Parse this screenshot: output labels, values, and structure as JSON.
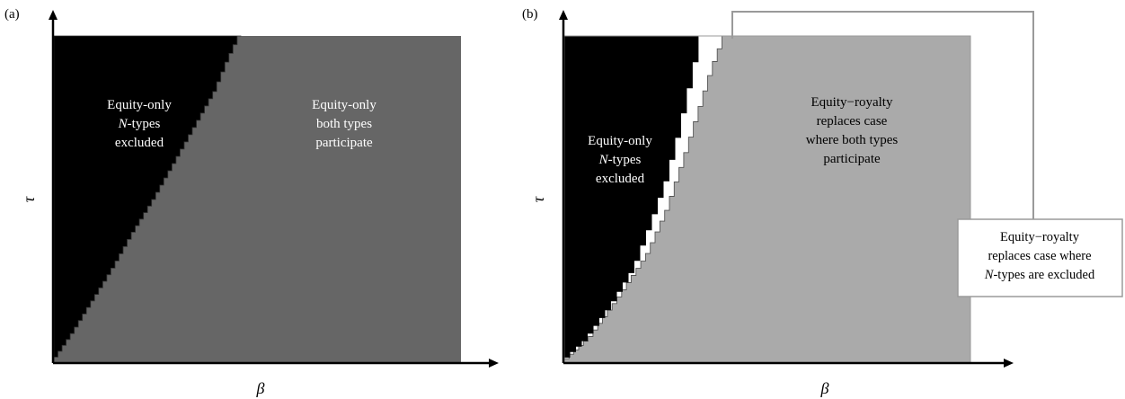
{
  "chart_data": [
    {
      "panel_label": "(a)",
      "type": "area",
      "xlabel": "β",
      "ylabel": "τ",
      "regions": [
        {
          "name": "equity-only-n-excluded",
          "color": "#000000",
          "lines": [
            {
              "text": "Equity-only"
            },
            {
              "text": "N",
              "italic": true,
              "suffix": "-types"
            },
            {
              "text": "excluded"
            }
          ]
        },
        {
          "name": "equity-only-both-participate",
          "color": "#666666",
          "lines": [
            {
              "text": "Equity-only"
            },
            {
              "text": "both types"
            },
            {
              "text": "participate"
            }
          ]
        }
      ],
      "boundary_curve": [
        [
          0.0,
          0.0
        ],
        [
          0.05,
          0.09
        ],
        [
          0.1,
          0.19
        ],
        [
          0.15,
          0.29
        ],
        [
          0.2,
          0.4
        ],
        [
          0.25,
          0.5
        ],
        [
          0.3,
          0.61
        ],
        [
          0.35,
          0.72
        ],
        [
          0.4,
          0.83
        ],
        [
          0.43,
          0.92
        ],
        [
          0.46,
          1.0
        ]
      ]
    },
    {
      "panel_label": "(b)",
      "type": "area",
      "xlabel": "β",
      "ylabel": "τ",
      "regions": [
        {
          "name": "equity-only-n-excluded",
          "color": "#000000",
          "lines": [
            {
              "text": "Equity-only"
            },
            {
              "text": "N",
              "italic": true,
              "suffix": "-types"
            },
            {
              "text": "excluded"
            }
          ]
        },
        {
          "name": "equity-royalty-replaces-both-participate",
          "color": "#aaaaaa",
          "lines": [
            {
              "text": "Equity−royalty"
            },
            {
              "text": "replaces case"
            },
            {
              "text": "where both types"
            },
            {
              "text": "participate"
            }
          ]
        },
        {
          "name": "equity-royalty-replaces-n-excluded",
          "color": "#ffffff",
          "callout_lines": [
            {
              "text": "Equity−royalty"
            },
            {
              "text": "replaces case where"
            },
            {
              "text": "N",
              "italic": true,
              "suffix": "-types are excluded"
            }
          ]
        }
      ],
      "inner_boundary_curve": [
        [
          0.0,
          0.0
        ],
        [
          0.06,
          0.07
        ],
        [
          0.12,
          0.17
        ],
        [
          0.18,
          0.29
        ],
        [
          0.22,
          0.42
        ],
        [
          0.26,
          0.56
        ],
        [
          0.29,
          0.7
        ],
        [
          0.32,
          0.86
        ],
        [
          0.345,
          1.0
        ]
      ],
      "outer_boundary_curve": [
        [
          0.0,
          0.0
        ],
        [
          0.07,
          0.08
        ],
        [
          0.14,
          0.2
        ],
        [
          0.21,
          0.33
        ],
        [
          0.26,
          0.47
        ],
        [
          0.3,
          0.62
        ],
        [
          0.34,
          0.78
        ],
        [
          0.37,
          0.9
        ],
        [
          0.4,
          1.0
        ]
      ]
    }
  ]
}
